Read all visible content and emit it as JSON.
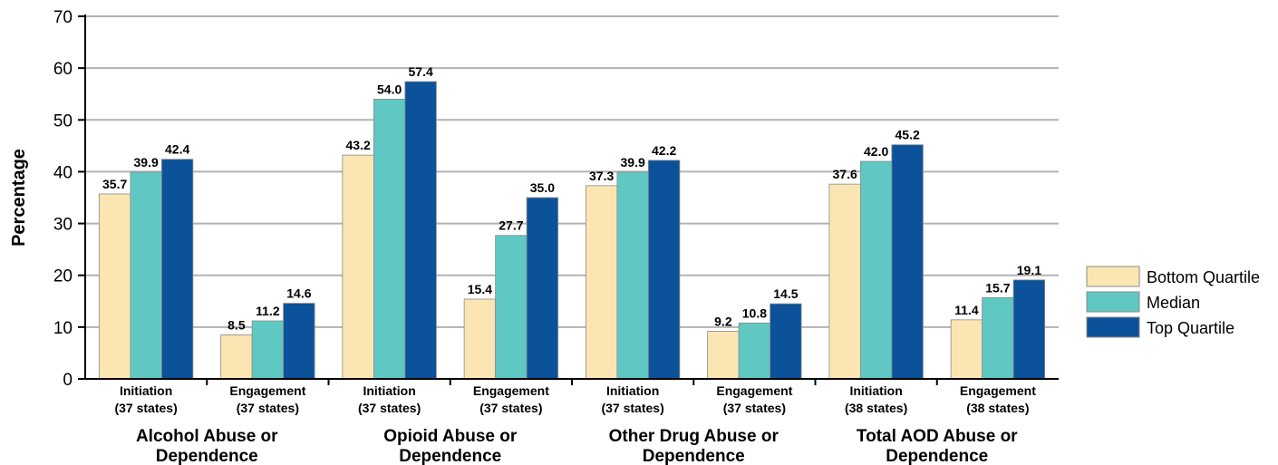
{
  "chart_data": {
    "type": "bar",
    "ylabel": "Percentage",
    "ylim": [
      0,
      70
    ],
    "yticks": [
      0,
      10,
      20,
      30,
      40,
      50,
      60,
      70
    ],
    "grid": true,
    "legend_position": "right",
    "categories": [
      {
        "label_line1": "Initiation",
        "label_line2": "(37 states)"
      },
      {
        "label_line1": "Engagement",
        "label_line2": "(37 states)"
      },
      {
        "label_line1": "Initiation",
        "label_line2": "(37 states)"
      },
      {
        "label_line1": "Engagement",
        "label_line2": "(37 states)"
      },
      {
        "label_line1": "Initiation",
        "label_line2": "(37 states)"
      },
      {
        "label_line1": "Engagement",
        "label_line2": "(37 states)"
      },
      {
        "label_line1": "Initiation",
        "label_line2": "(38 states)"
      },
      {
        "label_line1": "Engagement",
        "label_line2": "(38 states)"
      }
    ],
    "groups": [
      {
        "line1": "Alcohol Abuse or",
        "line2": "Dependence"
      },
      {
        "line1": "Opioid Abuse or",
        "line2": "Dependence"
      },
      {
        "line1": "Other Drug Abuse or",
        "line2": "Dependence"
      },
      {
        "line1": "Total AOD Abuse or",
        "line2": "Dependence"
      }
    ],
    "series": [
      {
        "name": "Bottom Quartile",
        "color": "#fbe6b3",
        "values": [
          35.7,
          8.5,
          43.2,
          15.4,
          37.3,
          9.2,
          37.6,
          11.4
        ],
        "labels": [
          "35.7",
          "8.5",
          "43.2",
          "15.4",
          "37.3",
          "9.2",
          "37.6",
          "11.4"
        ]
      },
      {
        "name": "Median",
        "color": "#5fc8c3",
        "values": [
          39.9,
          11.2,
          54.0,
          27.7,
          39.9,
          10.8,
          42.0,
          15.7
        ],
        "labels": [
          "39.9",
          "11.2",
          "54.0",
          "27.7",
          "39.9",
          "10.8",
          "42.0",
          "15.7"
        ]
      },
      {
        "name": "Top Quartile",
        "color": "#0b529b",
        "values": [
          42.4,
          14.6,
          57.4,
          35.0,
          42.2,
          14.5,
          45.2,
          19.1
        ],
        "labels": [
          "42.4",
          "14.6",
          "57.4",
          "35.0",
          "42.2",
          "14.5",
          "45.2",
          "19.1"
        ]
      }
    ]
  }
}
